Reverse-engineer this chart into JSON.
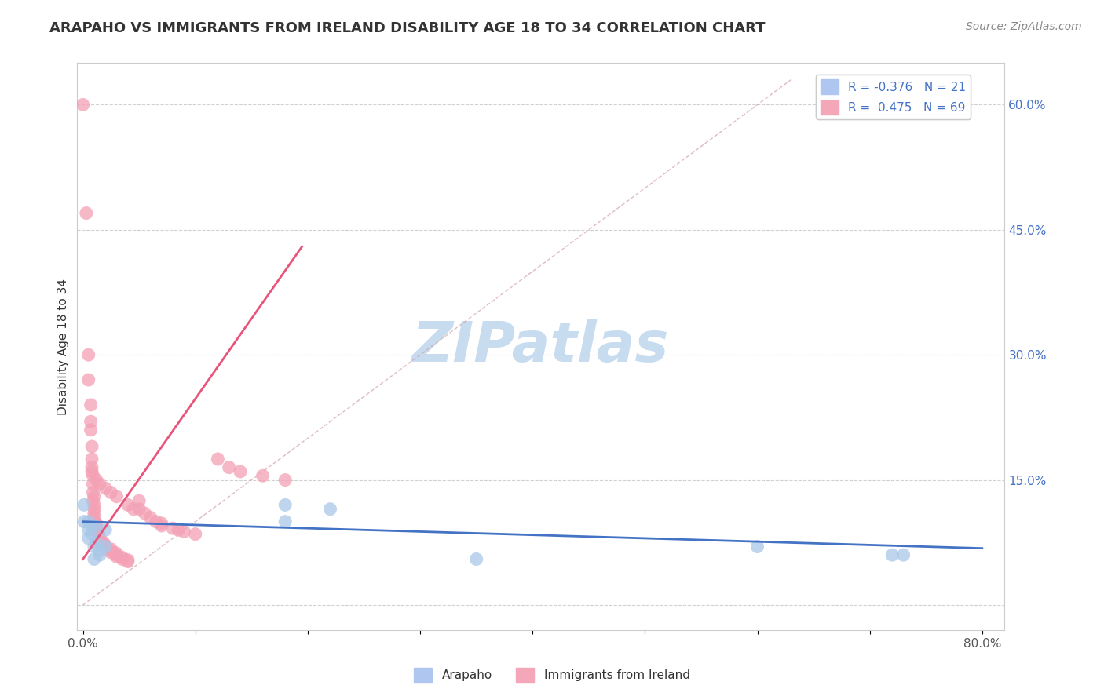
{
  "title": "ARAPAHO VS IMMIGRANTS FROM IRELAND DISABILITY AGE 18 TO 34 CORRELATION CHART",
  "source": "Source: ZipAtlas.com",
  "ylabel": "Disability Age 18 to 34",
  "xlim": [
    -0.005,
    0.82
  ],
  "ylim": [
    -0.03,
    0.65
  ],
  "xticks": [
    0.0,
    0.1,
    0.2,
    0.3,
    0.4,
    0.5,
    0.6,
    0.7,
    0.8
  ],
  "xticklabels": [
    "0.0%",
    "",
    "",
    "",
    "",
    "",
    "",
    "",
    "80.0%"
  ],
  "yticks": [
    0.0,
    0.15,
    0.3,
    0.45,
    0.6
  ],
  "yticklabels": [
    "",
    "15.0%",
    "30.0%",
    "45.0%",
    "60.0%"
  ],
  "watermark": "ZIPatlas",
  "arapaho_scatter": [
    [
      0.001,
      0.12
    ],
    [
      0.001,
      0.1
    ],
    [
      0.005,
      0.09
    ],
    [
      0.005,
      0.08
    ],
    [
      0.005,
      0.1
    ],
    [
      0.008,
      0.095
    ],
    [
      0.008,
      0.085
    ],
    [
      0.01,
      0.095
    ],
    [
      0.01,
      0.07
    ],
    [
      0.01,
      0.055
    ],
    [
      0.012,
      0.075
    ],
    [
      0.015,
      0.065
    ],
    [
      0.015,
      0.06
    ],
    [
      0.02,
      0.09
    ],
    [
      0.02,
      0.07
    ],
    [
      0.18,
      0.12
    ],
    [
      0.18,
      0.1
    ],
    [
      0.22,
      0.115
    ],
    [
      0.35,
      0.055
    ],
    [
      0.6,
      0.07
    ],
    [
      0.72,
      0.06
    ],
    [
      0.73,
      0.06
    ]
  ],
  "arapaho_color": "#A8C8E8",
  "arapaho_line_color": "#4472C4",
  "arapaho_line_x": [
    0.0,
    0.8
  ],
  "arapaho_line_y": [
    0.1,
    0.068
  ],
  "ireland_scatter": [
    [
      0.0,
      0.6
    ],
    [
      0.003,
      0.47
    ],
    [
      0.005,
      0.3
    ],
    [
      0.005,
      0.27
    ],
    [
      0.007,
      0.24
    ],
    [
      0.007,
      0.22
    ],
    [
      0.007,
      0.21
    ],
    [
      0.008,
      0.19
    ],
    [
      0.008,
      0.175
    ],
    [
      0.008,
      0.165
    ],
    [
      0.009,
      0.155
    ],
    [
      0.009,
      0.145
    ],
    [
      0.009,
      0.135
    ],
    [
      0.009,
      0.125
    ],
    [
      0.01,
      0.12
    ],
    [
      0.01,
      0.115
    ],
    [
      0.01,
      0.11
    ],
    [
      0.01,
      0.105
    ],
    [
      0.01,
      0.1
    ],
    [
      0.012,
      0.098
    ],
    [
      0.012,
      0.095
    ],
    [
      0.012,
      0.092
    ],
    [
      0.013,
      0.09
    ],
    [
      0.013,
      0.088
    ],
    [
      0.014,
      0.085
    ],
    [
      0.014,
      0.083
    ],
    [
      0.015,
      0.08
    ],
    [
      0.015,
      0.078
    ],
    [
      0.016,
      0.076
    ],
    [
      0.018,
      0.075
    ],
    [
      0.018,
      0.073
    ],
    [
      0.02,
      0.072
    ],
    [
      0.02,
      0.07
    ],
    [
      0.02,
      0.068
    ],
    [
      0.025,
      0.067
    ],
    [
      0.025,
      0.065
    ],
    [
      0.025,
      0.063
    ],
    [
      0.03,
      0.062
    ],
    [
      0.03,
      0.06
    ],
    [
      0.03,
      0.058
    ],
    [
      0.035,
      0.057
    ],
    [
      0.035,
      0.055
    ],
    [
      0.04,
      0.054
    ],
    [
      0.04,
      0.052
    ],
    [
      0.05,
      0.125
    ],
    [
      0.05,
      0.115
    ],
    [
      0.055,
      0.11
    ],
    [
      0.06,
      0.105
    ],
    [
      0.065,
      0.1
    ],
    [
      0.07,
      0.098
    ],
    [
      0.07,
      0.095
    ],
    [
      0.08,
      0.092
    ],
    [
      0.085,
      0.09
    ],
    [
      0.09,
      0.088
    ],
    [
      0.1,
      0.085
    ],
    [
      0.12,
      0.175
    ],
    [
      0.13,
      0.165
    ],
    [
      0.14,
      0.16
    ],
    [
      0.16,
      0.155
    ],
    [
      0.18,
      0.15
    ],
    [
      0.03,
      0.13
    ],
    [
      0.04,
      0.12
    ],
    [
      0.045,
      0.115
    ],
    [
      0.025,
      0.135
    ],
    [
      0.02,
      0.14
    ],
    [
      0.015,
      0.145
    ],
    [
      0.012,
      0.15
    ],
    [
      0.01,
      0.13
    ],
    [
      0.008,
      0.16
    ]
  ],
  "ireland_color": "#F4A0B5",
  "ireland_line_color": "#E8547A",
  "ireland_line_x": [
    0.0,
    0.195
  ],
  "ireland_line_y": [
    0.055,
    0.43
  ],
  "diagonal_line_x": [
    0.0,
    0.63
  ],
  "diagonal_line_y": [
    0.0,
    0.63
  ],
  "background_color": "#FFFFFF",
  "plot_bg_color": "#FFFFFF",
  "grid_color": "#CCCCCC",
  "title_fontsize": 13,
  "label_fontsize": 11,
  "tick_fontsize": 11,
  "source_fontsize": 10,
  "watermark_color": "#C8DCF0",
  "watermark_fontsize": 52
}
